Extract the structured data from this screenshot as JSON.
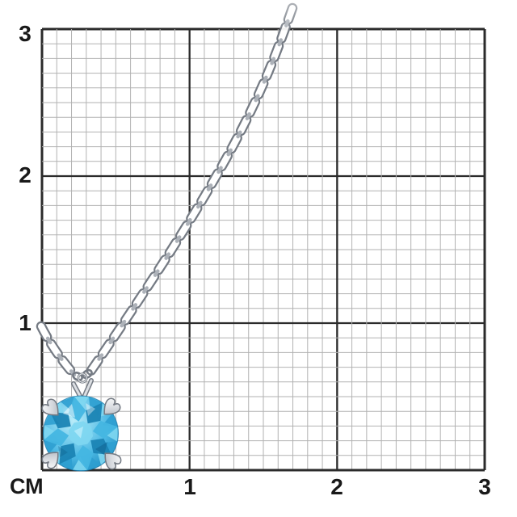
{
  "ruler": {
    "unit_label": "СМ",
    "y_axis_labels": [
      "3",
      "2",
      "1"
    ],
    "x_axis_labels": [
      "1",
      "2",
      "3"
    ],
    "grid_size_cm": 3,
    "minor_divisions_per_cm": 10,
    "colors": {
      "background": "#ffffff",
      "major_line": "#2b2b2b",
      "minor_line": "#b2b2b2",
      "label": "#191919"
    }
  },
  "photo": {
    "subject": "silver cable-chain necklace with round light-blue gemstone pendant in four-prong setting",
    "colors": {
      "metal_light": "#f2f3f5",
      "metal_mid": "#adb2b9",
      "metal_dark": "#757b84",
      "stone_palette": [
        "#bdeefb",
        "#7fd7f1",
        "#45b6e2",
        "#2e9fd0",
        "#1b84b4",
        "#11719f"
      ]
    }
  }
}
